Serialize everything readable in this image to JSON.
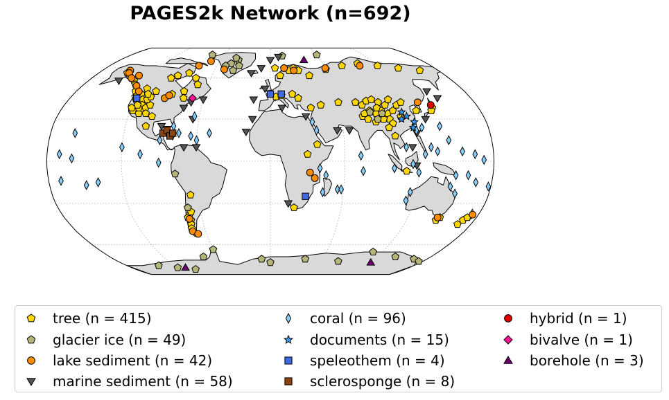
{
  "title": "PAGES2k Network (n=692)",
  "map": {
    "projection": "robinson",
    "ocean_color": "#ffffff",
    "land_color": "#d9d9d9",
    "gridlines": "dotted"
  },
  "legend": {
    "items": [
      {
        "label": "tree (n = 415)",
        "marker": "pentagon",
        "color": "#FFD700"
      },
      {
        "label": "glacier ice (n = 49)",
        "marker": "pentagon",
        "color": "#B5B57A"
      },
      {
        "label": "lake sediment (n = 42)",
        "marker": "circle",
        "color": "#FF8C00"
      },
      {
        "label": "marine sediment (n = 58)",
        "marker": "triangle-down",
        "color": "#555555"
      },
      {
        "label": "coral (n = 96)",
        "marker": "thin-diamond",
        "color": "#87CEFA"
      },
      {
        "label": "documents (n = 15)",
        "marker": "star",
        "color": "#3399FF"
      },
      {
        "label": "speleothem (n = 4)",
        "marker": "square",
        "color": "#4169E1"
      },
      {
        "label": "sclerosponge (n = 8)",
        "marker": "square",
        "color": "#8B4513"
      },
      {
        "label": "hybrid (n = 1)",
        "marker": "circle",
        "color": "#E00000"
      },
      {
        "label": "bivalve (n = 1)",
        "marker": "diamond",
        "color": "#FF1493"
      },
      {
        "label": "borehole (n = 3)",
        "marker": "triangle-up",
        "color": "#6A0070"
      }
    ]
  },
  "sites": [
    {
      "type": "tree",
      "lon": -150,
      "lat": 64
    },
    {
      "type": "tree",
      "lon": -145,
      "lat": 62
    },
    {
      "type": "tree",
      "lon": -140,
      "lat": 60
    },
    {
      "type": "tree",
      "lon": -135,
      "lat": 58
    },
    {
      "type": "tree",
      "lon": -130,
      "lat": 55
    },
    {
      "type": "tree",
      "lon": -125,
      "lat": 50
    },
    {
      "type": "tree",
      "lon": -122,
      "lat": 46
    },
    {
      "type": "tree",
      "lon": -120,
      "lat": 44
    },
    {
      "type": "tree",
      "lon": -118,
      "lat": 48
    },
    {
      "type": "tree",
      "lon": -116,
      "lat": 52
    },
    {
      "type": "tree",
      "lon": -114,
      "lat": 44
    },
    {
      "type": "tree",
      "lon": -112,
      "lat": 40
    },
    {
      "type": "tree",
      "lon": -110,
      "lat": 36
    },
    {
      "type": "tree",
      "lon": -108,
      "lat": 38
    },
    {
      "type": "tree",
      "lon": -106,
      "lat": 34
    },
    {
      "type": "tree",
      "lon": -105,
      "lat": 40
    },
    {
      "type": "tree",
      "lon": -112,
      "lat": 34
    },
    {
      "type": "tree",
      "lon": -118,
      "lat": 36
    },
    {
      "type": "tree",
      "lon": -120,
      "lat": 38
    },
    {
      "type": "tree",
      "lon": -114,
      "lat": 38
    },
    {
      "type": "tree",
      "lon": -116,
      "lat": 40
    },
    {
      "type": "tree",
      "lon": -110,
      "lat": 44
    },
    {
      "type": "tree",
      "lon": -108,
      "lat": 46
    },
    {
      "type": "tree",
      "lon": -112,
      "lat": 48
    },
    {
      "type": "tree",
      "lon": -106,
      "lat": 50
    },
    {
      "type": "tree",
      "lon": -100,
      "lat": 60
    },
    {
      "type": "tree",
      "lon": -95,
      "lat": 62
    },
    {
      "type": "tree",
      "lon": -85,
      "lat": 64
    },
    {
      "type": "tree",
      "lon": -75,
      "lat": 60
    },
    {
      "type": "tree",
      "lon": -70,
      "lat": 55
    },
    {
      "type": "tree",
      "lon": -80,
      "lat": 50
    },
    {
      "type": "tree",
      "lon": -90,
      "lat": 48
    },
    {
      "type": "tree",
      "lon": -78,
      "lat": 45
    },
    {
      "type": "tree",
      "lon": -100,
      "lat": 32
    },
    {
      "type": "tree",
      "lon": -103,
      "lat": 25
    },
    {
      "type": "tree",
      "lon": 5,
      "lat": 68
    },
    {
      "type": "tree",
      "lon": 15,
      "lat": 68
    },
    {
      "type": "tree",
      "lon": 20,
      "lat": 66
    },
    {
      "type": "tree",
      "lon": 25,
      "lat": 68
    },
    {
      "type": "tree",
      "lon": 10,
      "lat": 62
    },
    {
      "type": "tree",
      "lon": 30,
      "lat": 66
    },
    {
      "type": "tree",
      "lon": 40,
      "lat": 62
    },
    {
      "type": "tree",
      "lon": 60,
      "lat": 67
    },
    {
      "type": "tree",
      "lon": 80,
      "lat": 70
    },
    {
      "type": "tree",
      "lon": 100,
      "lat": 72
    },
    {
      "type": "tree",
      "lon": 120,
      "lat": 70
    },
    {
      "type": "tree",
      "lon": 140,
      "lat": 68
    },
    {
      "type": "tree",
      "lon": 160,
      "lat": 66
    },
    {
      "type": "tree",
      "lon": 5,
      "lat": 46
    },
    {
      "type": "tree",
      "lon": 10,
      "lat": 47
    },
    {
      "type": "tree",
      "lon": 20,
      "lat": 48
    },
    {
      "type": "tree",
      "lon": 25,
      "lat": 45
    },
    {
      "type": "tree",
      "lon": 35,
      "lat": 38
    },
    {
      "type": "tree",
      "lon": 44,
      "lat": 40
    },
    {
      "type": "tree",
      "lon": 60,
      "lat": 42
    },
    {
      "type": "tree",
      "lon": 75,
      "lat": 42
    },
    {
      "type": "tree",
      "lon": 80,
      "lat": 40
    },
    {
      "type": "tree",
      "lon": 85,
      "lat": 43
    },
    {
      "type": "tree",
      "lon": 90,
      "lat": 44
    },
    {
      "type": "tree",
      "lon": 95,
      "lat": 42
    },
    {
      "type": "tree",
      "lon": 100,
      "lat": 40
    },
    {
      "type": "tree",
      "lon": 95,
      "lat": 36
    },
    {
      "type": "tree",
      "lon": 90,
      "lat": 34
    },
    {
      "type": "tree",
      "lon": 85,
      "lat": 36
    },
    {
      "type": "tree",
      "lon": 100,
      "lat": 34
    },
    {
      "type": "tree",
      "lon": 105,
      "lat": 36
    },
    {
      "type": "tree",
      "lon": 100,
      "lat": 30
    },
    {
      "type": "tree",
      "lon": 95,
      "lat": 30
    },
    {
      "type": "tree",
      "lon": 102,
      "lat": 27
    },
    {
      "type": "tree",
      "lon": 110,
      "lat": 32
    },
    {
      "type": "tree",
      "lon": 78,
      "lat": 32
    },
    {
      "type": "tree",
      "lon": 82,
      "lat": 30
    },
    {
      "type": "tree",
      "lon": 88,
      "lat": 28
    },
    {
      "type": "tree",
      "lon": 98,
      "lat": 24
    },
    {
      "type": "tree",
      "lon": 102,
      "lat": 18
    },
    {
      "type": "tree",
      "lon": 110,
      "lat": 40
    },
    {
      "type": "tree",
      "lon": 105,
      "lat": 44
    },
    {
      "type": "tree",
      "lon": 115,
      "lat": 42
    },
    {
      "type": "tree",
      "lon": 92,
      "lat": 38
    },
    {
      "type": "tree",
      "lon": 80,
      "lat": 34
    },
    {
      "type": "tree",
      "lon": 140,
      "lat": 38
    },
    {
      "type": "tree",
      "lon": 138,
      "lat": 36
    },
    {
      "type": "tree",
      "lon": 125,
      "lat": 36
    },
    {
      "type": "tree",
      "lon": 30,
      "lat": 5
    },
    {
      "type": "tree",
      "lon": 38,
      "lat": 12
    },
    {
      "type": "tree",
      "lon": 110,
      "lat": -7
    },
    {
      "type": "tree",
      "lon": 146,
      "lat": -42
    },
    {
      "type": "tree",
      "lon": 148,
      "lat": -40
    },
    {
      "type": "tree",
      "lon": 170,
      "lat": -42
    },
    {
      "type": "tree",
      "lon": 172,
      "lat": -40
    },
    {
      "type": "tree",
      "lon": 168,
      "lat": -45
    },
    {
      "type": "tree",
      "lon": -70,
      "lat": -38
    },
    {
      "type": "tree",
      "lon": -72,
      "lat": -40
    },
    {
      "type": "tree",
      "lon": -70,
      "lat": -42
    },
    {
      "type": "tree",
      "lon": -71,
      "lat": -45
    },
    {
      "type": "tree",
      "lon": -72,
      "lat": -48
    },
    {
      "type": "tree",
      "lon": -68,
      "lat": -36
    },
    {
      "type": "tree",
      "lon": -66,
      "lat": -24
    },
    {
      "type": "tree",
      "lon": 20,
      "lat": -33
    },
    {
      "type": "glacier ice",
      "lon": -45,
      "lat": 72
    },
    {
      "type": "glacier ice",
      "lon": -38,
      "lat": 75
    },
    {
      "type": "glacier ice",
      "lon": -42,
      "lat": 77
    },
    {
      "type": "glacier ice",
      "lon": -50,
      "lat": 70
    },
    {
      "type": "glacier ice",
      "lon": -35,
      "lat": 70
    },
    {
      "type": "glacier ice",
      "lon": -40,
      "lat": 66
    },
    {
      "type": "glacier ice",
      "lon": 15,
      "lat": 79
    },
    {
      "type": "glacier ice",
      "lon": 60,
      "lat": 80
    },
    {
      "type": "glacier ice",
      "lon": -75,
      "lat": 80
    },
    {
      "type": "glacier ice",
      "lon": -140,
      "lat": 60
    },
    {
      "type": "glacier ice",
      "lon": 85,
      "lat": 35
    },
    {
      "type": "glacier ice",
      "lon": 90,
      "lat": 30
    },
    {
      "type": "glacier ice",
      "lon": 95,
      "lat": 34
    },
    {
      "type": "glacier ice",
      "lon": -77,
      "lat": -9
    },
    {
      "type": "glacier ice",
      "lon": -70,
      "lat": -33
    },
    {
      "type": "glacier ice",
      "lon": -60,
      "lat": -64
    },
    {
      "type": "glacier ice",
      "lon": -75,
      "lat": -70
    },
    {
      "type": "glacier ice",
      "lon": -10,
      "lat": -72
    },
    {
      "type": "glacier ice",
      "lon": 0,
      "lat": -75
    },
    {
      "type": "glacier ice",
      "lon": 40,
      "lat": -72
    },
    {
      "type": "glacier ice",
      "lon": 80,
      "lat": -74
    },
    {
      "type": "glacier ice",
      "lon": 110,
      "lat": -66
    },
    {
      "type": "glacier ice",
      "lon": 140,
      "lat": -70
    },
    {
      "type": "glacier ice",
      "lon": 165,
      "lat": -72
    },
    {
      "type": "glacier ice",
      "lon": 175,
      "lat": -74
    },
    {
      "type": "glacier ice",
      "lon": -120,
      "lat": -80
    },
    {
      "type": "glacier ice",
      "lon": -100,
      "lat": -82
    },
    {
      "type": "glacier ice",
      "lon": -140,
      "lat": -78
    },
    {
      "type": "lake sediment",
      "lon": -150,
      "lat": 66
    },
    {
      "type": "lake sediment",
      "lon": -148,
      "lat": 64
    },
    {
      "type": "lake sediment",
      "lon": -140,
      "lat": 60
    },
    {
      "type": "lake sediment",
      "lon": -135,
      "lat": 62
    },
    {
      "type": "lake sediment",
      "lon": -128,
      "lat": 54
    },
    {
      "type": "lake sediment",
      "lon": -122,
      "lat": 50
    },
    {
      "type": "lake sediment",
      "lon": -95,
      "lat": 45
    },
    {
      "type": "lake sediment",
      "lon": -92,
      "lat": 47
    },
    {
      "type": "lake sediment",
      "lon": -70,
      "lat": 74
    },
    {
      "type": "lake sediment",
      "lon": -80,
      "lat": 70
    },
    {
      "type": "lake sediment",
      "lon": -50,
      "lat": 67
    },
    {
      "type": "lake sediment",
      "lon": 15,
      "lat": 68
    },
    {
      "type": "lake sediment",
      "lon": 25,
      "lat": 66
    },
    {
      "type": "lake sediment",
      "lon": 60,
      "lat": 68
    },
    {
      "type": "lake sediment",
      "lon": 100,
      "lat": 70
    },
    {
      "type": "lake sediment",
      "lon": 130,
      "lat": 42
    },
    {
      "type": "lake sediment",
      "lon": 32,
      "lat": -8
    },
    {
      "type": "lake sediment",
      "lon": 36,
      "lat": -12
    },
    {
      "type": "lake sediment",
      "lon": 175,
      "lat": -38
    },
    {
      "type": "lake sediment",
      "lon": 146,
      "lat": -40
    },
    {
      "type": "lake sediment",
      "lon": -71,
      "lat": -41
    },
    {
      "type": "lake sediment",
      "lon": -72,
      "lat": -50
    },
    {
      "type": "lake sediment",
      "lon": -68,
      "lat": -52
    },
    {
      "type": "marine sediment",
      "lon": -150,
      "lat": 58
    },
    {
      "type": "marine sediment",
      "lon": -70,
      "lat": 42
    },
    {
      "type": "marine sediment",
      "lon": -60,
      "lat": 44
    },
    {
      "type": "marine sediment",
      "lon": -65,
      "lat": 30
    },
    {
      "type": "marine sediment",
      "lon": -90,
      "lat": 25
    },
    {
      "type": "marine sediment",
      "lon": -85,
      "lat": 23
    },
    {
      "type": "marine sediment",
      "lon": -80,
      "lat": 18
    },
    {
      "type": "marine sediment",
      "lon": -70,
      "lat": 10
    },
    {
      "type": "marine sediment",
      "lon": -60,
      "lat": 10
    },
    {
      "type": "marine sediment",
      "lon": -20,
      "lat": 64
    },
    {
      "type": "marine sediment",
      "lon": -10,
      "lat": 68
    },
    {
      "type": "marine sediment",
      "lon": 0,
      "lat": 75
    },
    {
      "type": "marine sediment",
      "lon": 10,
      "lat": 78
    },
    {
      "type": "marine sediment",
      "lon": -5,
      "lat": 52
    },
    {
      "type": "marine sediment",
      "lon": -15,
      "lat": 44
    },
    {
      "type": "marine sediment",
      "lon": -15,
      "lat": 30
    },
    {
      "type": "marine sediment",
      "lon": -20,
      "lat": 21
    },
    {
      "type": "marine sediment",
      "lon": 10,
      "lat": 38
    },
    {
      "type": "marine sediment",
      "lon": 30,
      "lat": 32
    },
    {
      "type": "marine sediment",
      "lon": 55,
      "lat": 22
    },
    {
      "type": "marine sediment",
      "lon": 65,
      "lat": 22
    },
    {
      "type": "marine sediment",
      "lon": 150,
      "lat": 45
    },
    {
      "type": "marine sediment",
      "lon": 145,
      "lat": 50
    },
    {
      "type": "marine sediment",
      "lon": 130,
      "lat": 30
    },
    {
      "type": "marine sediment",
      "lon": 120,
      "lat": 20
    },
    {
      "type": "marine sediment",
      "lon": 115,
      "lat": 10
    },
    {
      "type": "marine sediment",
      "lon": 118,
      "lat": -3
    },
    {
      "type": "marine sediment",
      "lon": 15,
      "lat": -30
    },
    {
      "type": "marine sediment",
      "lon": -75,
      "lat": 38
    },
    {
      "type": "coral",
      "lon": -160,
      "lat": 20
    },
    {
      "type": "coral",
      "lon": -170,
      "lat": 5
    },
    {
      "type": "coral",
      "lon": -160,
      "lat": 2
    },
    {
      "type": "coral",
      "lon": -150,
      "lat": -17
    },
    {
      "type": "coral",
      "lon": -140,
      "lat": -15
    },
    {
      "type": "coral",
      "lon": -170,
      "lat": -14
    },
    {
      "type": "coral",
      "lon": -120,
      "lat": 10
    },
    {
      "type": "coral",
      "lon": -105,
      "lat": 5
    },
    {
      "type": "coral",
      "lon": -90,
      "lat": -1
    },
    {
      "type": "coral",
      "lon": -90,
      "lat": 15
    },
    {
      "type": "coral",
      "lon": -80,
      "lat": 25
    },
    {
      "type": "coral",
      "lon": -64,
      "lat": 32
    },
    {
      "type": "coral",
      "lon": -65,
      "lat": 18
    },
    {
      "type": "coral",
      "lon": -60,
      "lat": 15
    },
    {
      "type": "coral",
      "lon": -75,
      "lat": 20
    },
    {
      "type": "coral",
      "lon": -50,
      "lat": 20
    },
    {
      "type": "coral",
      "lon": 35,
      "lat": 28
    },
    {
      "type": "coral",
      "lon": 38,
      "lat": 22
    },
    {
      "type": "coral",
      "lon": 40,
      "lat": -5
    },
    {
      "type": "coral",
      "lon": 45,
      "lat": -10
    },
    {
      "type": "coral",
      "lon": 55,
      "lat": -20
    },
    {
      "type": "coral",
      "lon": 43,
      "lat": -22
    },
    {
      "type": "coral",
      "lon": 58,
      "lat": -20
    },
    {
      "type": "coral",
      "lon": 73,
      "lat": 4
    },
    {
      "type": "coral",
      "lon": 75,
      "lat": -7
    },
    {
      "type": "coral",
      "lon": 100,
      "lat": -5
    },
    {
      "type": "coral",
      "lon": 110,
      "lat": 10
    },
    {
      "type": "coral",
      "lon": 115,
      "lat": -2
    },
    {
      "type": "coral",
      "lon": 120,
      "lat": -8
    },
    {
      "type": "coral",
      "lon": 125,
      "lat": 5
    },
    {
      "type": "coral",
      "lon": 130,
      "lat": 10
    },
    {
      "type": "coral",
      "lon": 135,
      "lat": 7
    },
    {
      "type": "coral",
      "lon": 140,
      "lat": 25
    },
    {
      "type": "coral",
      "lon": 145,
      "lat": 15
    },
    {
      "type": "coral",
      "lon": 150,
      "lat": -10
    },
    {
      "type": "coral",
      "lon": 147,
      "lat": -18
    },
    {
      "type": "coral",
      "lon": 152,
      "lat": -23
    },
    {
      "type": "coral",
      "lon": 160,
      "lat": -10
    },
    {
      "type": "coral",
      "lon": 167,
      "lat": -15
    },
    {
      "type": "coral",
      "lon": 172,
      "lat": 1
    },
    {
      "type": "coral",
      "lon": 178,
      "lat": -18
    },
    {
      "type": "coral",
      "lon": 165,
      "lat": 5
    },
    {
      "type": "coral",
      "lon": 155,
      "lat": 7
    },
    {
      "type": "coral",
      "lon": 115,
      "lat": -22
    },
    {
      "type": "coral",
      "lon": 113,
      "lat": -28
    },
    {
      "type": "coral",
      "lon": 120,
      "lat": 22
    },
    {
      "type": "coral",
      "lon": 125,
      "lat": 24
    },
    {
      "type": "documents",
      "lon": 120,
      "lat": 28
    },
    {
      "type": "documents",
      "lon": 115,
      "lat": 32
    },
    {
      "type": "documents",
      "lon": 118,
      "lat": 24
    },
    {
      "type": "documents",
      "lon": 112,
      "lat": 35
    },
    {
      "type": "documents",
      "lon": 110,
      "lat": 30
    },
    {
      "type": "speleothem",
      "lon": -120,
      "lat": 45
    },
    {
      "type": "speleothem",
      "lon": 10,
      "lat": 48
    },
    {
      "type": "speleothem",
      "lon": 0,
      "lat": 48
    },
    {
      "type": "speleothem",
      "lon": 29,
      "lat": -25
    },
    {
      "type": "sclerosponge",
      "lon": -88,
      "lat": 20
    },
    {
      "type": "sclerosponge",
      "lon": -85,
      "lat": 22
    },
    {
      "type": "sclerosponge",
      "lon": -82,
      "lat": 18
    },
    {
      "type": "sclerosponge",
      "lon": -80,
      "lat": 20
    },
    {
      "type": "hybrid",
      "lon": 140,
      "lat": 40
    },
    {
      "type": "bivalve",
      "lon": -70,
      "lat": 45
    },
    {
      "type": "borehole",
      "lon": 40,
      "lat": 75
    },
    {
      "type": "borehole",
      "lon": -110,
      "lat": -80
    },
    {
      "type": "borehole",
      "lon": 120,
      "lat": -75
    }
  ]
}
